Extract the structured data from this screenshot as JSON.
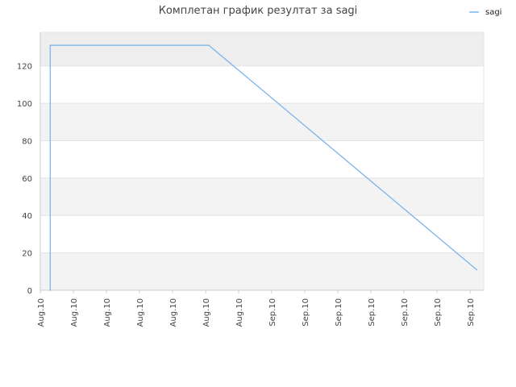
{
  "chart_data": {
    "type": "line",
    "title": "Комплетан график резултат за sagi",
    "xlabel": "",
    "ylabel": "",
    "x_tick_labels": [
      "Aug.10",
      "Aug.10",
      "Aug.10",
      "Aug.10",
      "Aug.10",
      "Aug.10",
      "Aug.10",
      "Sep.10",
      "Sep.10",
      "Sep.10",
      "Sep.10",
      "Sep.10",
      "Sep.10",
      "Sep.10"
    ],
    "ylim": [
      0,
      138
    ],
    "y_ticks": [
      0,
      20,
      40,
      60,
      80,
      100,
      120
    ],
    "grid": true,
    "legend_position": "top-right",
    "series": [
      {
        "name": "sagi",
        "color": "#7cb5ec",
        "x_index": [
          0.3,
          0.3,
          5.1,
          13.2
        ],
        "values": [
          0,
          131,
          131,
          11
        ]
      }
    ]
  }
}
